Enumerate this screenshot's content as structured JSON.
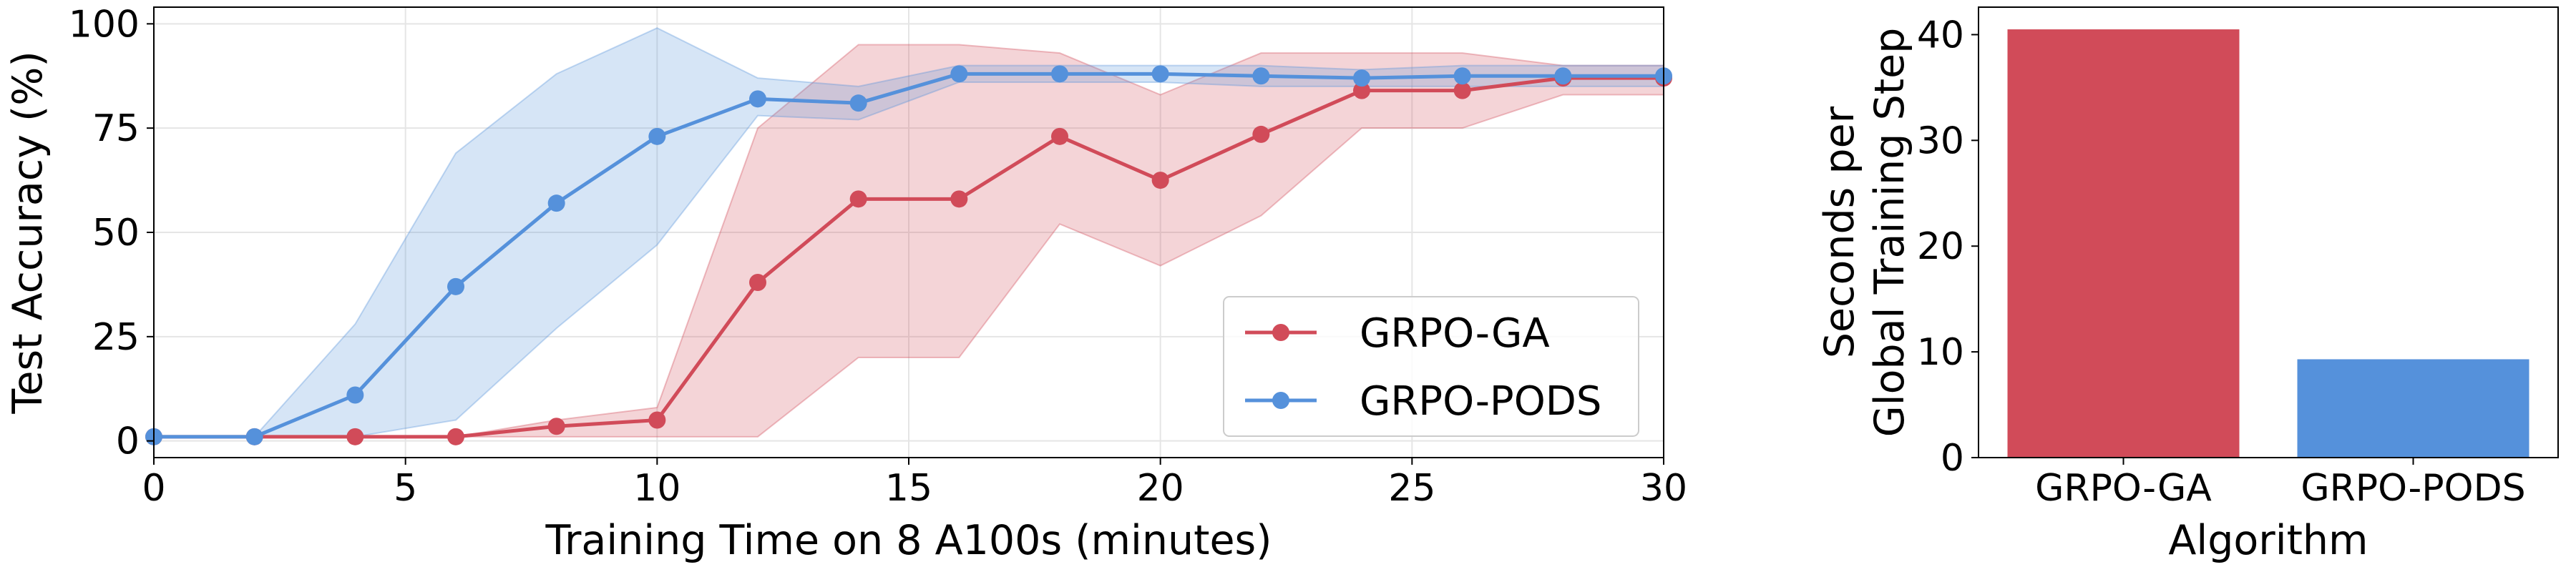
{
  "colors": {
    "ga": "#d14b59",
    "pods": "#5591db"
  },
  "chart_data": [
    {
      "type": "line",
      "xlabel": "Training Time on 8 A100s (minutes)",
      "ylabel": "Test Accuracy (%)",
      "xlim": [
        0,
        30
      ],
      "ylim": [
        -4,
        104
      ],
      "xticks": [
        0,
        5,
        10,
        15,
        20,
        25,
        30
      ],
      "yticks": [
        0,
        25,
        50,
        75,
        100
      ],
      "grid": true,
      "legend_position": "lower-right",
      "series": [
        {
          "name": "GRPO-GA",
          "color": "#d14b59",
          "x": [
            0,
            2,
            4,
            6,
            8,
            10,
            12,
            14,
            16,
            18,
            20,
            22,
            24,
            26,
            28,
            30
          ],
          "y": [
            1,
            1,
            1,
            1,
            3.5,
            5,
            38,
            58,
            58,
            73,
            62.5,
            73.5,
            84,
            84,
            87,
            87
          ],
          "lower": [
            1,
            1,
            1,
            1,
            1,
            1,
            1,
            20,
            20,
            52,
            42,
            54,
            75,
            75,
            83,
            83
          ],
          "upper": [
            1,
            1,
            1,
            1,
            5,
            8,
            75,
            95,
            95,
            93,
            83,
            93,
            93,
            93,
            90,
            90
          ]
        },
        {
          "name": "GRPO-PODS",
          "color": "#5591db",
          "x": [
            0,
            2,
            4,
            6,
            8,
            10,
            12,
            14,
            16,
            18,
            20,
            22,
            24,
            26,
            28,
            30
          ],
          "y": [
            1,
            1,
            11,
            37,
            57,
            73,
            82,
            81,
            88,
            88,
            88,
            87.5,
            87,
            87.5,
            87.5,
            87.5
          ],
          "lower": [
            1,
            1,
            1,
            5,
            27,
            47,
            78,
            77,
            86,
            86,
            86,
            85,
            85,
            85,
            85,
            85
          ],
          "upper": [
            1,
            1,
            28,
            69,
            88,
            99,
            87,
            85,
            90,
            90,
            90,
            90,
            89,
            90,
            90,
            90
          ]
        }
      ]
    },
    {
      "type": "bar",
      "xlabel": "Algorithm",
      "ylabel_lines": [
        "Seconds per",
        "Global Training Step"
      ],
      "categories": [
        "GRPO-GA",
        "GRPO-PODS"
      ],
      "values": [
        40.5,
        9.3
      ],
      "bar_colors": [
        "#d14b59",
        "#5591db"
      ],
      "ylim": [
        0,
        42.6
      ],
      "yticks": [
        0,
        10,
        20,
        30,
        40
      ],
      "grid": false
    }
  ]
}
